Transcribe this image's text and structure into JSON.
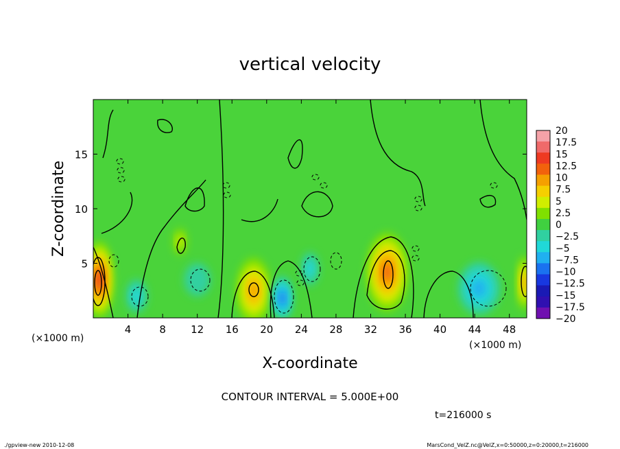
{
  "chart_data": {
    "type": "heatmap",
    "title": "vertical velocity",
    "xlabel": "X-coordinate",
    "ylabel": "Z-coordinate",
    "x_unit_left": "(×1000 m)",
    "x_unit_right": "(×1000 m)",
    "xlim": [
      0,
      50
    ],
    "ylim": [
      0,
      20
    ],
    "x_ticks": [
      4,
      8,
      12,
      16,
      20,
      24,
      28,
      32,
      36,
      40,
      44,
      48
    ],
    "y_ticks": [
      5,
      10,
      15
    ],
    "colorbar_labels": [
      "20",
      "17.5",
      "15",
      "12.5",
      "10",
      "7.5",
      "5",
      "2.5",
      "0",
      "−2.5",
      "−5",
      "−7.5",
      "−10",
      "−12.5",
      "−15",
      "−17.5",
      "−20"
    ],
    "colorbar_colors": [
      "#f5a2a8",
      "#f06a6a",
      "#ee3a22",
      "#f2620c",
      "#f5a000",
      "#f5cf00",
      "#d0ee00",
      "#80e000",
      "#40d040",
      "#30d0a0",
      "#20d8d8",
      "#20b0f0",
      "#1a72f0",
      "#1838e0",
      "#1a1ab4",
      "#3010b0",
      "#7010b0"
    ],
    "contour_interval": "CONTOUR INTERVAL = 5.000E+00",
    "time_label": "t=216000 s",
    "features": [
      {
        "x": 0.7,
        "z": 3.5,
        "value": 14,
        "rx": 1.6,
        "rz": 3.5
      },
      {
        "x": 18.5,
        "z": 2.5,
        "value": 11,
        "rx": 2.0,
        "rz": 3.0
      },
      {
        "x": 21.8,
        "z": 1.8,
        "value": -11,
        "rx": 1.2,
        "rz": 2.0
      },
      {
        "x": 25.0,
        "z": 4.5,
        "value": -5,
        "rx": 1.0,
        "rz": 1.5
      },
      {
        "x": 33.9,
        "z": 4.2,
        "value": 12,
        "rx": 2.4,
        "rz": 3.6
      },
      {
        "x": 44.5,
        "z": 2.7,
        "value": -8,
        "rx": 2.4,
        "rz": 2.4
      },
      {
        "x": 49.7,
        "z": 3.2,
        "value": 10,
        "rx": 0.8,
        "rz": 2.5
      },
      {
        "x": 10.0,
        "z": 7.0,
        "value": 5,
        "rx": 0.8,
        "rz": 1.2
      },
      {
        "x": 5.0,
        "z": 2.0,
        "value": -4,
        "rx": 1.2,
        "rz": 1.5
      },
      {
        "x": 12.0,
        "z": 3.5,
        "value": -3,
        "rx": 1.5,
        "rz": 1.5
      }
    ]
  },
  "footer": {
    "left": "./gpview-new  2010-12-08",
    "right": "MarsCond_VelZ.nc@VelZ,x=0:50000,z=0:20000,t=216000"
  }
}
